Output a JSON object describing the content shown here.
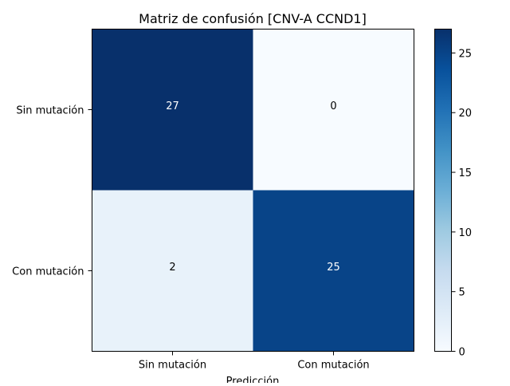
{
  "chart_data": {
    "type": "heatmap",
    "title": "Matriz de confusión [CNV-A CCND1]",
    "xlabel": "Predicción",
    "ylabel": "",
    "x_categories": [
      "Sin mutación",
      "Con mutación"
    ],
    "y_categories": [
      "Sin mutación",
      "Con mutación"
    ],
    "values": [
      [
        27,
        0
      ],
      [
        2,
        25
      ]
    ],
    "colormap": "Blues",
    "color_range": [
      0,
      27
    ],
    "colorbar_ticks": [
      0,
      5,
      10,
      15,
      20,
      25
    ],
    "annotation_colors": {
      "dark_cell_text": "#ffffff",
      "light_cell_text": "#000000"
    }
  }
}
